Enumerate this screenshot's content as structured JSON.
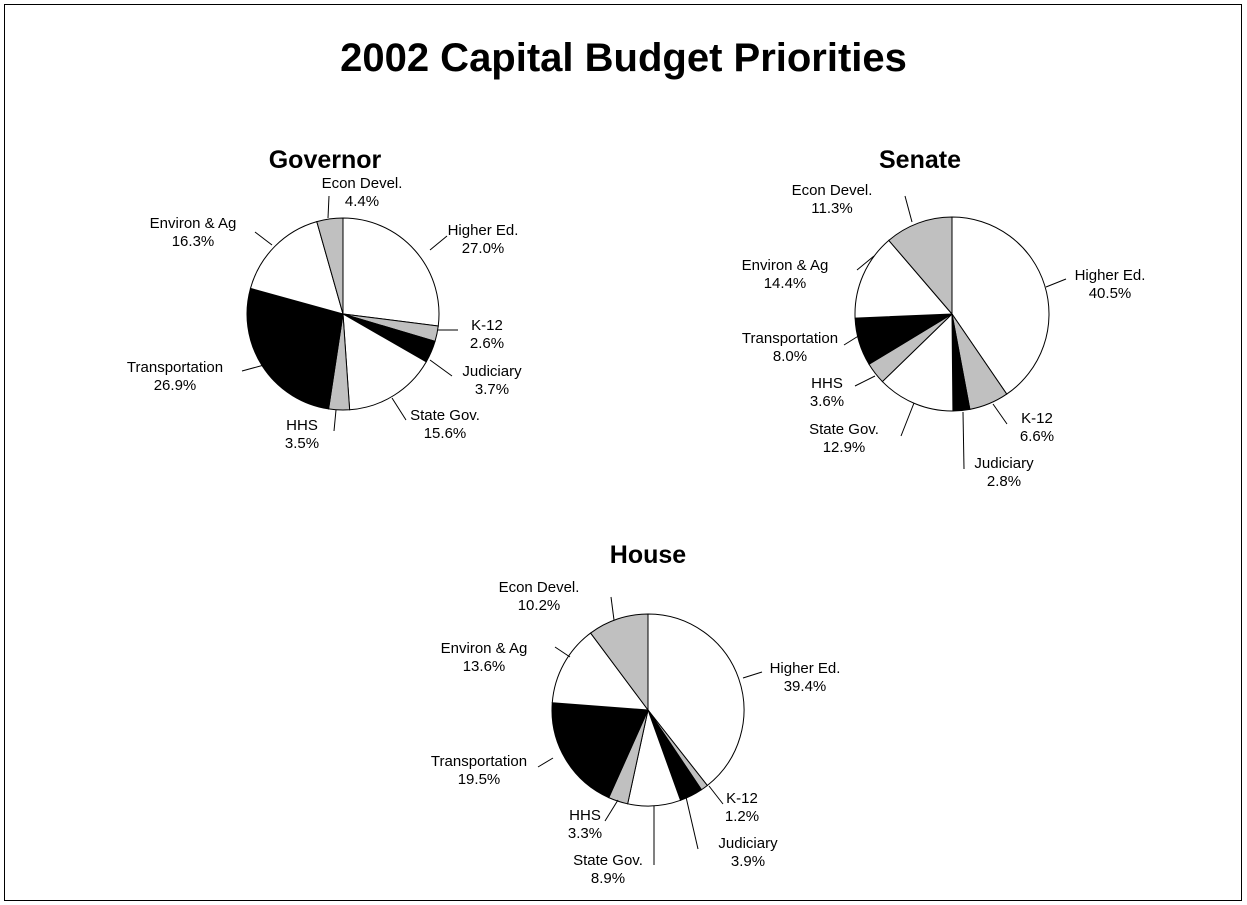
{
  "title": "2002 Capital Budget Priorities",
  "colors": {
    "white": "#ffffff",
    "gray": "#c0c0c0",
    "black": "#000000"
  },
  "chart_data": [
    {
      "type": "pie",
      "title": "Governor",
      "slices": [
        {
          "label": "Higher Ed.",
          "value": 27.0,
          "display": "27.0%",
          "color": "white"
        },
        {
          "label": "K-12",
          "value": 2.6,
          "display": "2.6%",
          "color": "gray"
        },
        {
          "label": "Judiciary",
          "value": 3.7,
          "display": "3.7%",
          "color": "black"
        },
        {
          "label": "State Gov.",
          "value": 15.6,
          "display": "15.6%",
          "color": "white"
        },
        {
          "label": "HHS",
          "value": 3.5,
          "display": "3.5%",
          "color": "gray"
        },
        {
          "label": "Transportation",
          "value": 26.9,
          "display": "26.9%",
          "color": "black"
        },
        {
          "label": "Environ & Ag",
          "value": 16.3,
          "display": "16.3%",
          "color": "white"
        },
        {
          "label": "Econ Devel.",
          "value": 4.4,
          "display": "4.4%",
          "color": "gray"
        }
      ]
    },
    {
      "type": "pie",
      "title": "Senate",
      "slices": [
        {
          "label": "Higher Ed.",
          "value": 40.5,
          "display": "40.5%",
          "color": "white"
        },
        {
          "label": "K-12",
          "value": 6.6,
          "display": "6.6%",
          "color": "gray"
        },
        {
          "label": "Judiciary",
          "value": 2.8,
          "display": "2.8%",
          "color": "black"
        },
        {
          "label": "State Gov.",
          "value": 12.9,
          "display": "12.9%",
          "color": "white"
        },
        {
          "label": "HHS",
          "value": 3.6,
          "display": "3.6%",
          "color": "gray"
        },
        {
          "label": "Transportation",
          "value": 8.0,
          "display": "8.0%",
          "color": "black"
        },
        {
          "label": "Environ & Ag",
          "value": 14.4,
          "display": "14.4%",
          "color": "white"
        },
        {
          "label": "Econ Devel.",
          "value": 11.3,
          "display": "11.3%",
          "color": "gray"
        }
      ]
    },
    {
      "type": "pie",
      "title": "House",
      "slices": [
        {
          "label": "Higher Ed.",
          "value": 39.4,
          "display": "39.4%",
          "color": "white"
        },
        {
          "label": "K-12",
          "value": 1.2,
          "display": "1.2%",
          "color": "gray"
        },
        {
          "label": "Judiciary",
          "value": 3.9,
          "display": "3.9%",
          "color": "black"
        },
        {
          "label": "State Gov.",
          "value": 8.9,
          "display": "8.9%",
          "color": "white"
        },
        {
          "label": "HHS",
          "value": 3.3,
          "display": "3.3%",
          "color": "gray"
        },
        {
          "label": "Transportation",
          "value": 19.5,
          "display": "19.5%",
          "color": "black"
        },
        {
          "label": "Environ & Ag",
          "value": 13.6,
          "display": "13.6%",
          "color": "white"
        },
        {
          "label": "Econ Devel.",
          "value": 10.2,
          "display": "10.2%",
          "color": "gray"
        }
      ]
    }
  ]
}
